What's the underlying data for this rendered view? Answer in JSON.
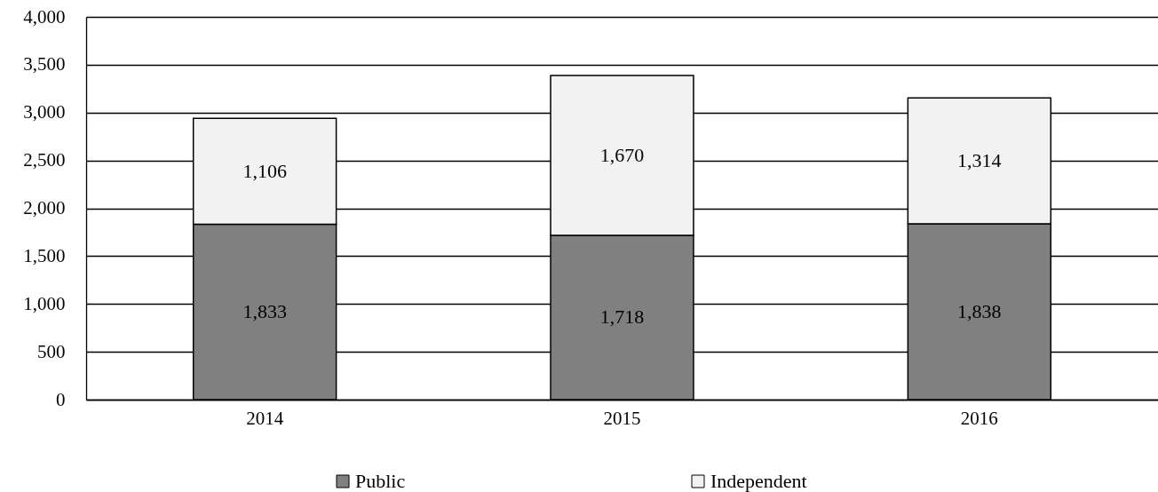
{
  "chart_data": {
    "type": "bar",
    "categories": [
      "2014",
      "2015",
      "2016"
    ],
    "series": [
      {
        "name": "Public",
        "color": "#808080",
        "values": [
          1833,
          1718,
          1838
        ],
        "value_labels": [
          "1,833",
          "1,718",
          "1,838"
        ]
      },
      {
        "name": "Independent",
        "color": "#f2f2f2",
        "values": [
          1106,
          1670,
          1314
        ],
        "value_labels": [
          "1,106",
          "1,670",
          "1,314"
        ]
      }
    ],
    "stacked": true,
    "ylim": [
      0,
      4000
    ],
    "yticks": [
      0,
      500,
      {
        "value": 1000,
        "label": "1,000"
      },
      {
        "value": 1500,
        "label": "1,500"
      },
      {
        "value": 2000,
        "label": "2,000"
      },
      {
        "value": 2500,
        "label": "2,500"
      },
      {
        "value": 3000,
        "label": "3,000"
      },
      {
        "value": 3500,
        "label": "3,500"
      },
      {
        "value": 4000,
        "label": "4,000"
      }
    ],
    "grid": "y",
    "legend": "bottom"
  }
}
